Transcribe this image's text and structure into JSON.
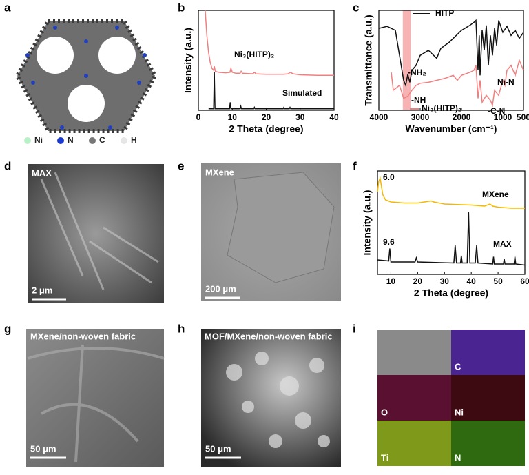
{
  "panels": [
    "a",
    "b",
    "c",
    "d",
    "e",
    "f",
    "g",
    "h",
    "i"
  ],
  "atom_legend": [
    "Ni",
    "N",
    "C",
    "H"
  ],
  "images": {
    "d": {
      "label": "MAX",
      "scale": "2 μm"
    },
    "e": {
      "label": "MXene",
      "scale": "200 μm"
    },
    "g": {
      "label": "MXene/non-woven fabric",
      "scale": "50 μm"
    },
    "h": {
      "label": "MOF/MXene/non-woven fabric",
      "scale": "50 μm"
    },
    "i": {
      "maps": [
        "C",
        "O",
        "Ni",
        "Ti",
        "N"
      ]
    }
  },
  "chart_data": [
    {
      "type": "line",
      "xlabel": "2 Theta (degree)",
      "ylabel": "Intensity (a.u.)",
      "xlim": [
        0,
        40
      ],
      "xticks": [
        0,
        10,
        20,
        30,
        40
      ],
      "ylim": [
        0,
        100
      ],
      "series": [
        {
          "name": "Ni₃(HITP)₂",
          "color": "#f08080",
          "x": [
            2,
            2.5,
            3,
            3.5,
            4,
            4.5,
            4.7,
            5,
            5.5,
            6,
            8,
            9.3,
            9.6,
            10,
            11,
            12.3,
            12.6,
            13,
            16,
            16.5,
            17,
            20,
            25,
            26.5,
            27,
            28,
            30,
            35,
            40
          ],
          "values": [
            100,
            75,
            58,
            48,
            42,
            40,
            44,
            39,
            38.5,
            38,
            37.5,
            38,
            42,
            38,
            37,
            37,
            39,
            37,
            36.5,
            38,
            36.5,
            36,
            36,
            36.5,
            38,
            36.5,
            35.5,
            35,
            35
          ]
        },
        {
          "name": "Simulated",
          "color": "#111111",
          "x": [
            3,
            4.5,
            4.7,
            4.9,
            9.2,
            9.4,
            9.6,
            12.3,
            12.5,
            12.7,
            16.3,
            16.5,
            16.7,
            25,
            25.2,
            25.4,
            26.8,
            27,
            27.2,
            40
          ],
          "values": [
            1.5,
            1.5,
            38,
            1.5,
            1.5,
            8,
            1.5,
            1.5,
            4,
            1.5,
            1.5,
            3,
            1.5,
            1.5,
            3,
            1.5,
            1.5,
            3,
            1.5,
            1.5
          ]
        }
      ]
    },
    {
      "type": "line",
      "xlabel": "Wavenumber (cm⁻¹)",
      "ylabel": "Transmittance (a.u.)",
      "xlim": [
        4000,
        500
      ],
      "xticks": [
        4000,
        3000,
        2000,
        1000,
        500
      ],
      "ylim": [
        0,
        100
      ],
      "highlight": [
        3420,
        3230
      ],
      "highlight_color": "#f7b3b3",
      "annotations": [
        "-NH₂",
        "-NH",
        "-C-N",
        "Ni-N"
      ],
      "series": [
        {
          "name": "HITP",
          "color": "#111111",
          "x": [
            4000,
            3800,
            3600,
            3500,
            3400,
            3350,
            3300,
            3250,
            3200,
            3100,
            3000,
            2800,
            2600,
            2500,
            2300,
            2000,
            1800,
            1700,
            1650,
            1600,
            1570,
            1550,
            1500,
            1450,
            1400,
            1350,
            1300,
            1250,
            1200,
            1150,
            1100,
            1000,
            900,
            800,
            700,
            600,
            500
          ],
          "values": [
            82,
            84,
            80,
            55,
            30,
            25,
            36,
            28,
            40,
            45,
            55,
            60,
            52,
            62,
            68,
            80,
            85,
            88,
            90,
            40,
            75,
            35,
            80,
            60,
            85,
            45,
            75,
            55,
            82,
            65,
            90,
            78,
            84,
            75,
            80,
            72,
            78
          ]
        },
        {
          "name": "Ni₃(HITP)₂",
          "color": "#f08080",
          "x": [
            3700,
            3650,
            3500,
            3400,
            3300,
            3200,
            3100,
            3000,
            2800,
            2600,
            2400,
            2200,
            2100,
            2000,
            1800,
            1700,
            1650,
            1600,
            1550,
            1500,
            1400,
            1300,
            1250,
            1200,
            1100,
            1000,
            950,
            900,
            800,
            700,
            600,
            500
          ],
          "values": [
            38,
            20,
            25,
            12,
            14,
            20,
            25,
            27,
            28,
            30,
            32,
            35,
            30,
            35,
            38,
            40,
            45,
            12,
            30,
            8,
            15,
            10,
            5,
            20,
            15,
            30,
            25,
            40,
            45,
            35,
            50,
            40
          ]
        }
      ]
    },
    {
      "type": "line",
      "xlabel": "2 Theta (degree)",
      "ylabel": "Intensity (a.u.)",
      "xlim": [
        5,
        60
      ],
      "xticks": [
        10,
        20,
        30,
        40,
        50,
        60
      ],
      "ylim": [
        0,
        100
      ],
      "annotations": [
        "6.0",
        "9.6"
      ],
      "series": [
        {
          "name": "MXene",
          "color": "#f5b800",
          "x": [
            5,
            5.5,
            6,
            6.5,
            7,
            8,
            10,
            15,
            20,
            25,
            26,
            30,
            40,
            45,
            47,
            48,
            50,
            55,
            60
          ],
          "values": [
            80,
            90,
            93,
            85,
            77,
            72,
            70,
            69,
            69,
            71,
            70,
            68,
            67,
            66,
            68,
            66,
            65,
            64,
            64
          ]
        },
        {
          "name": "MAX",
          "color": "#111111",
          "x": [
            5,
            9.2,
            9.6,
            10,
            19,
            19.5,
            20,
            33.5,
            34,
            34.5,
            36,
            36.3,
            36.6,
            38.5,
            39,
            39.5,
            41.5,
            42,
            42.5,
            48,
            48.3,
            48.6,
            52,
            52.3,
            52.6,
            56,
            56.3,
            56.6,
            60
          ],
          "values": [
            14,
            13,
            25,
            12,
            12,
            16,
            12,
            11,
            28,
            11,
            11,
            18,
            11,
            11,
            60,
            11,
            11,
            28,
            11,
            10,
            17,
            10,
            10,
            15,
            10,
            10,
            17,
            10,
            9
          ]
        }
      ]
    }
  ]
}
